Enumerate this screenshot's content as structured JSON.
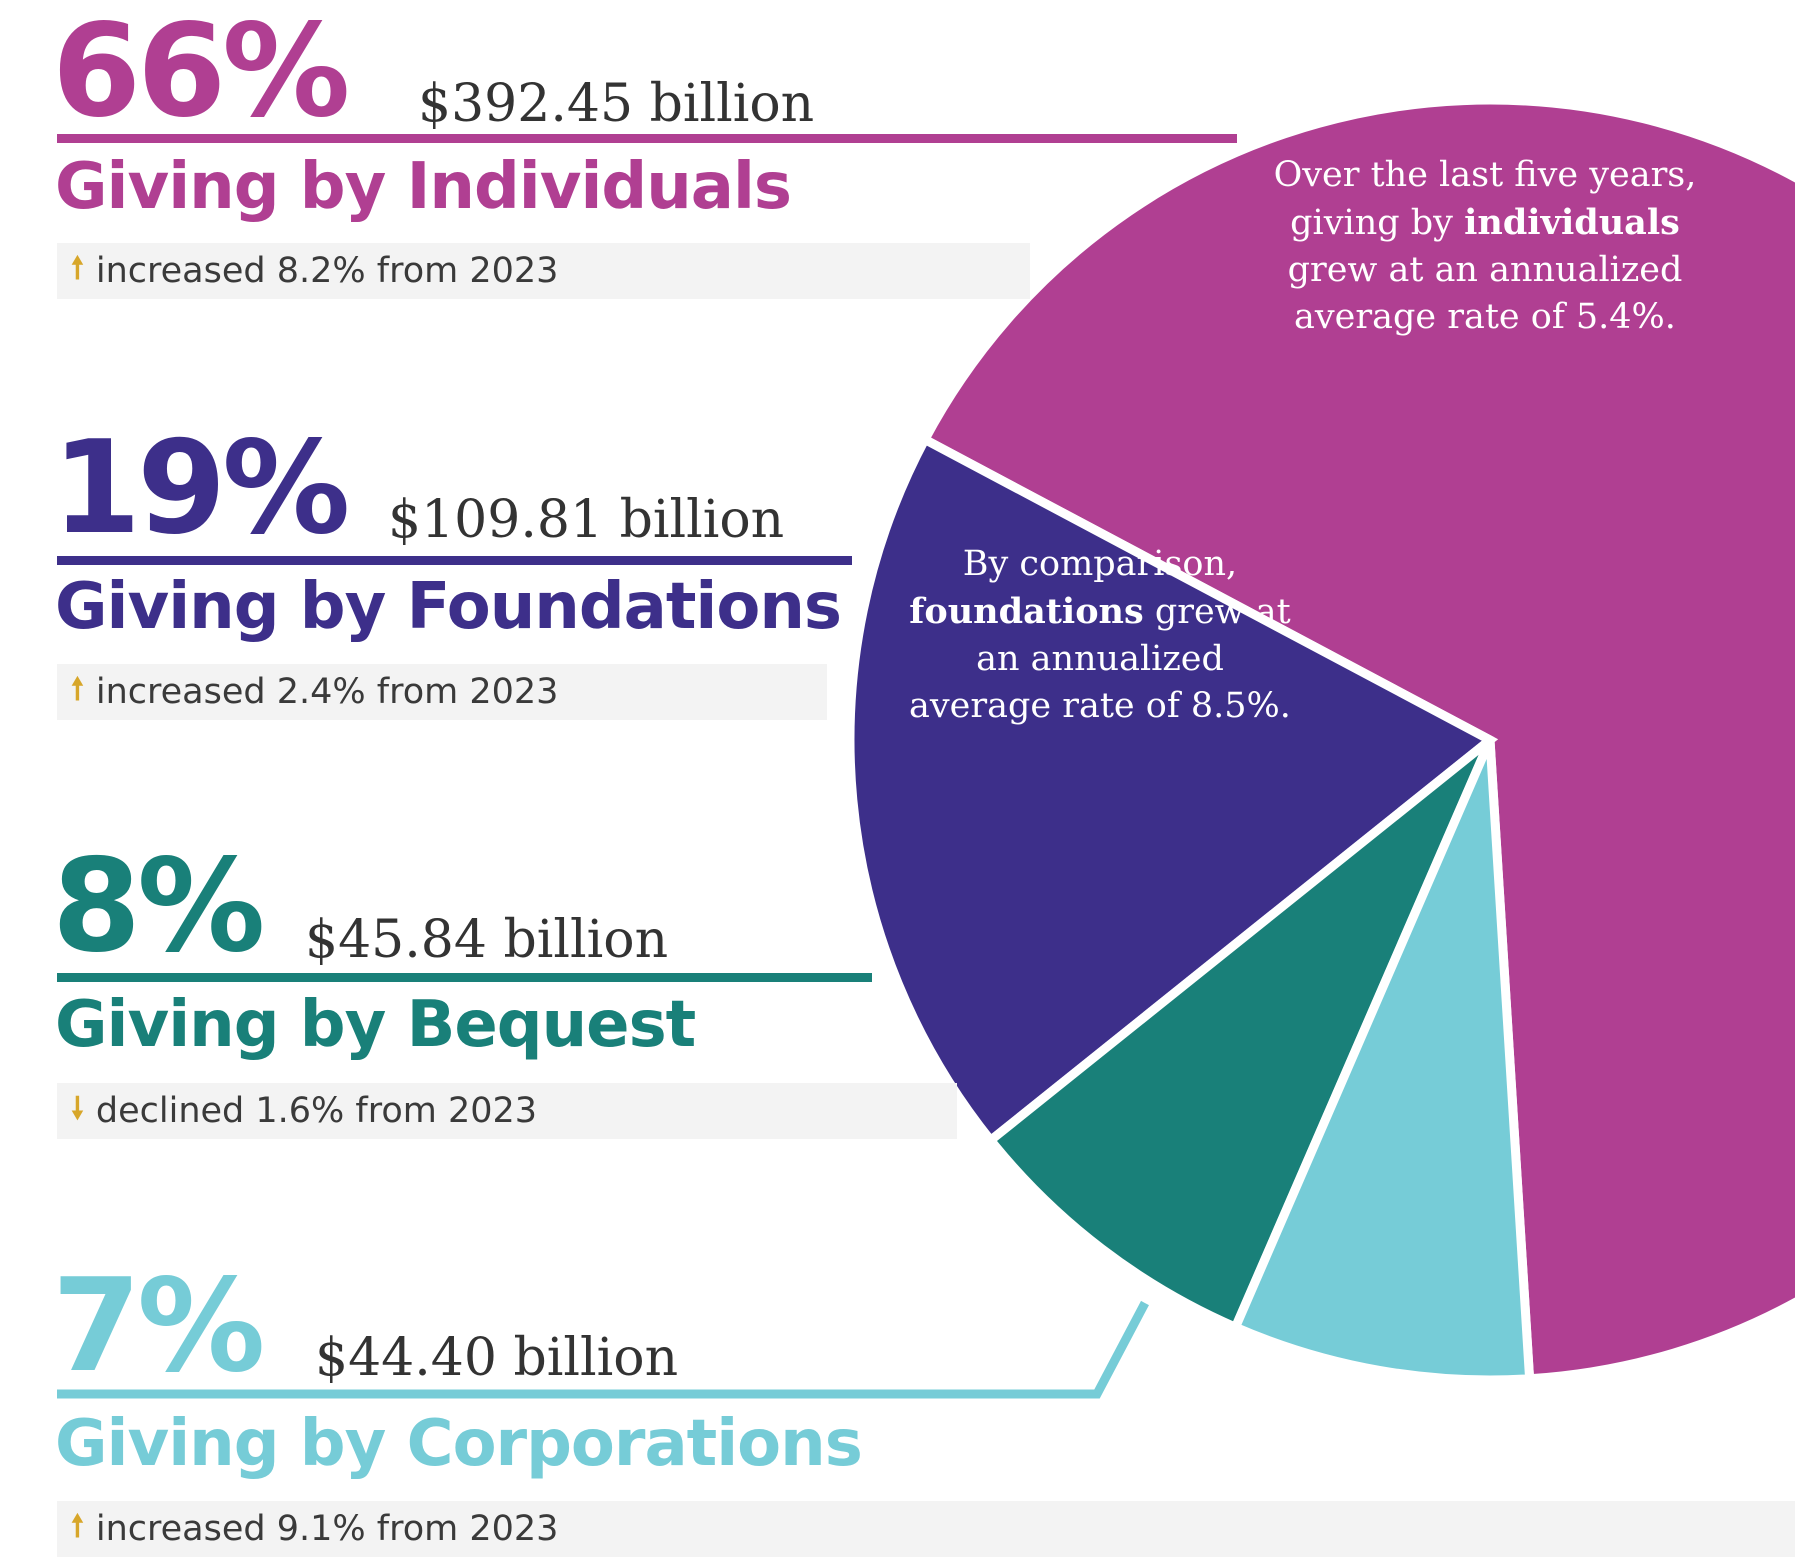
{
  "colors": {
    "individuals": "#b03f92",
    "foundations": "#3d2f8a",
    "bequest": "#198079",
    "corporations": "#76ccd7",
    "arrow": "#d7a62a"
  },
  "segments": [
    {
      "key": "individuals",
      "percent_label": "66%",
      "amount_label": "$392.45 billion",
      "title": "Giving by Individuals",
      "change_icon": "arrow-up-icon",
      "change_text": "increased 8.2% from 2023"
    },
    {
      "key": "foundations",
      "percent_label": "19%",
      "amount_label": "$109.81 billion",
      "title": "Giving by Foundations",
      "change_icon": "arrow-up-icon",
      "change_text": "increased 2.4% from 2023"
    },
    {
      "key": "bequest",
      "percent_label": "8%",
      "amount_label": "$45.84 billion",
      "title": "Giving by Bequest",
      "change_icon": "arrow-down-icon",
      "change_text": "declined 1.6% from 2023"
    },
    {
      "key": "corporations",
      "percent_label": "7%",
      "amount_label": "$44.40 billion",
      "title": "Giving by Corporations",
      "change_icon": "arrow-up-icon",
      "change_text": "increased 9.1% from 2023"
    }
  ],
  "notes": {
    "individuals": {
      "before": "Over the last five years, giving by ",
      "bold": "individuals",
      "after": " grew at an annualized average rate of 5.4%."
    },
    "foundations": {
      "before": "By comparison, ",
      "bold": "foundations",
      "after": " grew at an annualized average rate of 8.5%."
    }
  },
  "chart_data": {
    "type": "pie",
    "unit": "billion USD",
    "categories": [
      "Individuals",
      "Foundations",
      "Bequest",
      "Corporations"
    ],
    "values": [
      392.45,
      109.81,
      45.84,
      44.4
    ],
    "percentages": [
      66,
      19,
      8,
      7
    ],
    "yoy_change_pct_vs_2023": [
      8.2,
      2.4,
      -1.6,
      9.1
    ],
    "five_year_annualized_growth_pct": {
      "Individuals": 5.4,
      "Foundations": 8.5
    }
  }
}
